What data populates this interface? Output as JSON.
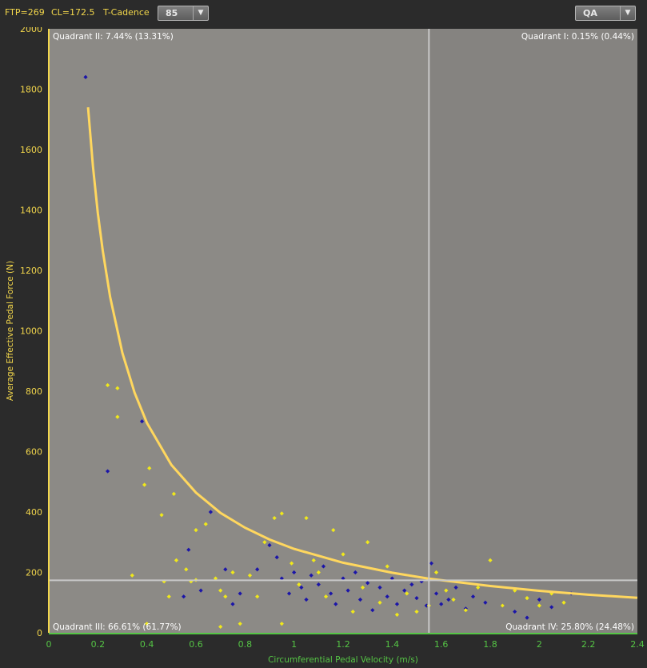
{
  "toolbar": {
    "ftp": "FTP=269",
    "cl": "CL=172.5",
    "tcadence_label": "T-Cadence",
    "tcadence_value": "85",
    "mode_value": "QA"
  },
  "colors": {
    "background": "#2b2b2b",
    "plot_left": "#8c8a86",
    "plot_right": "#858380",
    "axis_y": "#f2d64b",
    "axis_x": "#55c545",
    "curve": "#ffd75e",
    "series_blue": "#1b15a8",
    "series_yellow": "#f0e81a",
    "reference_line": "#c8c8c8"
  },
  "chart_data": {
    "type": "scatter",
    "xlabel": "Circumferential Pedal Velocity (m/s)",
    "ylabel": "Average Effective Pedal Force (N)",
    "xlim": [
      0,
      2.4
    ],
    "ylim": [
      0,
      2000
    ],
    "x_ticks": [
      "0",
      "0.2",
      "0.4",
      "0.6",
      "0.8",
      "1",
      "1.2",
      "1.4",
      "1.6",
      "1.8",
      "2",
      "2.2",
      "2.4"
    ],
    "y_ticks": [
      "0",
      "200",
      "400",
      "600",
      "800",
      "1000",
      "1200",
      "1400",
      "1600",
      "1800",
      "2000"
    ],
    "reference_lines": {
      "x": 1.55,
      "y": 174
    },
    "quadrants": [
      {
        "label": "Quadrant II: 7.44% (13.31%)",
        "position": "top-left"
      },
      {
        "label": "Quadrant I: 0.15% (0.44%)",
        "position": "top-right"
      },
      {
        "label": "Quadrant III: 66.61% (61.77%)",
        "position": "bottom-left"
      },
      {
        "label": "Quadrant IV: 25.80% (24.48%)",
        "position": "bottom-right"
      }
    ],
    "curve": {
      "x": [
        0.16,
        0.18,
        0.2,
        0.22,
        0.25,
        0.3,
        0.35,
        0.4,
        0.5,
        0.6,
        0.7,
        0.8,
        0.9,
        1.0,
        1.2,
        1.4,
        1.55,
        1.8,
        2.0,
        2.2,
        2.4
      ],
      "y": [
        1740,
        1545,
        1390,
        1265,
        1112,
        927,
        795,
        695,
        556,
        464,
        397,
        348,
        309,
        278,
        232,
        199,
        179,
        155,
        139,
        126,
        116
      ]
    },
    "series": [
      {
        "color": "blue",
        "points": [
          [
            0.15,
            1840
          ],
          [
            0.24,
            535
          ],
          [
            0.38,
            700
          ],
          [
            0.57,
            275
          ],
          [
            0.66,
            400
          ],
          [
            0.72,
            210
          ],
          [
            0.78,
            130
          ],
          [
            0.85,
            210
          ],
          [
            0.9,
            290
          ],
          [
            0.93,
            250
          ],
          [
            0.95,
            180
          ],
          [
            0.98,
            130
          ],
          [
            1.0,
            200
          ],
          [
            1.03,
            150
          ],
          [
            1.05,
            110
          ],
          [
            1.07,
            190
          ],
          [
            1.1,
            160
          ],
          [
            1.12,
            220
          ],
          [
            1.15,
            130
          ],
          [
            1.17,
            95
          ],
          [
            1.2,
            180
          ],
          [
            1.22,
            140
          ],
          [
            1.25,
            200
          ],
          [
            1.27,
            110
          ],
          [
            1.3,
            165
          ],
          [
            1.32,
            75
          ],
          [
            1.35,
            150
          ],
          [
            1.38,
            120
          ],
          [
            1.4,
            180
          ],
          [
            1.42,
            95
          ],
          [
            1.45,
            140
          ],
          [
            1.48,
            160
          ],
          [
            1.5,
            115
          ],
          [
            1.52,
            170
          ],
          [
            1.54,
            90
          ],
          [
            1.56,
            230
          ],
          [
            1.58,
            130
          ],
          [
            1.6,
            95
          ],
          [
            1.63,
            110
          ],
          [
            1.66,
            150
          ],
          [
            1.7,
            80
          ],
          [
            1.73,
            120
          ],
          [
            1.78,
            100
          ],
          [
            1.85,
            90
          ],
          [
            1.9,
            70
          ],
          [
            1.95,
            50
          ],
          [
            2.0,
            110
          ],
          [
            2.05,
            85
          ],
          [
            2.13,
            130
          ],
          [
            0.55,
            120
          ],
          [
            0.62,
            140
          ],
          [
            0.75,
            95
          ]
        ]
      },
      {
        "color": "yellow",
        "points": [
          [
            0.24,
            820
          ],
          [
            0.28,
            810
          ],
          [
            0.28,
            715
          ],
          [
            0.39,
            490
          ],
          [
            0.41,
            545
          ],
          [
            0.46,
            390
          ],
          [
            0.51,
            460
          ],
          [
            0.6,
            340
          ],
          [
            0.64,
            360
          ],
          [
            0.34,
            190
          ],
          [
            0.47,
            170
          ],
          [
            0.49,
            120
          ],
          [
            0.52,
            240
          ],
          [
            0.56,
            210
          ],
          [
            0.6,
            175
          ],
          [
            0.68,
            180
          ],
          [
            0.7,
            140
          ],
          [
            0.72,
            120
          ],
          [
            0.75,
            200
          ],
          [
            0.78,
            30
          ],
          [
            0.82,
            190
          ],
          [
            0.85,
            120
          ],
          [
            0.88,
            300
          ],
          [
            0.92,
            380
          ],
          [
            0.95,
            395
          ],
          [
            0.99,
            230
          ],
          [
            1.02,
            160
          ],
          [
            1.05,
            380
          ],
          [
            1.08,
            240
          ],
          [
            1.1,
            200
          ],
          [
            1.13,
            120
          ],
          [
            1.16,
            340
          ],
          [
            1.2,
            260
          ],
          [
            1.24,
            70
          ],
          [
            1.28,
            150
          ],
          [
            1.3,
            300
          ],
          [
            1.35,
            100
          ],
          [
            1.38,
            220
          ],
          [
            1.42,
            60
          ],
          [
            1.46,
            130
          ],
          [
            1.5,
            70
          ],
          [
            1.55,
            90
          ],
          [
            1.58,
            200
          ],
          [
            1.62,
            140
          ],
          [
            1.65,
            110
          ],
          [
            1.7,
            75
          ],
          [
            1.75,
            150
          ],
          [
            1.8,
            240
          ],
          [
            1.85,
            90
          ],
          [
            1.9,
            140
          ],
          [
            1.95,
            115
          ],
          [
            2.0,
            90
          ],
          [
            2.05,
            130
          ],
          [
            2.1,
            100
          ],
          [
            0.7,
            20
          ],
          [
            0.95,
            30
          ],
          [
            0.4,
            30
          ],
          [
            0.58,
            170
          ]
        ]
      }
    ]
  }
}
